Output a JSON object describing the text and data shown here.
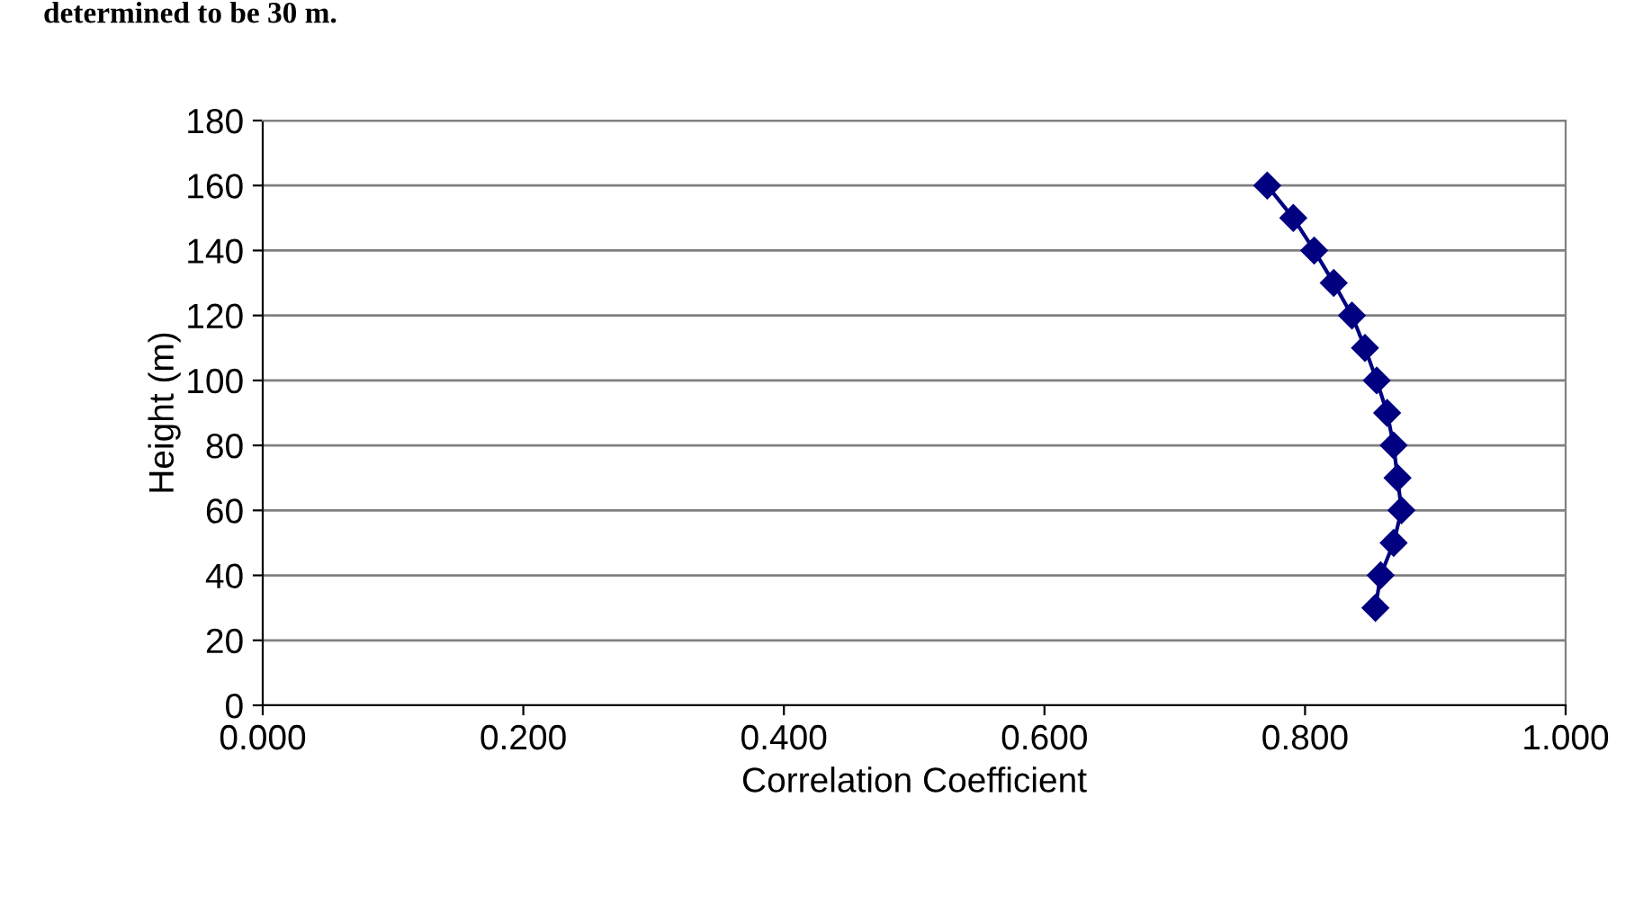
{
  "chart_data": {
    "type": "line",
    "xlabel": "Correlation Coefficient",
    "ylabel": "Height (m)",
    "annotations": [
      "determined to be 30 m."
    ],
    "x": [
      0.771,
      0.791,
      0.807,
      0.822,
      0.836,
      0.846,
      0.855,
      0.863,
      0.868,
      0.871,
      0.874,
      0.868,
      0.858,
      0.854
    ],
    "series": [
      {
        "color": "#000080",
        "values": [
          160,
          150,
          140,
          130,
          120,
          110,
          100,
          90,
          80,
          70,
          60,
          50,
          40,
          30
        ]
      }
    ],
    "xlim": [
      0,
      1
    ],
    "xticks": [
      {
        "value": 0,
        "label": "0.000"
      },
      {
        "value": 0.2,
        "label": "0.200"
      },
      {
        "value": 0.4,
        "label": "0.400"
      },
      {
        "value": 0.6,
        "label": "0.600"
      },
      {
        "value": 0.8,
        "label": "0.800"
      },
      {
        "value": 1,
        "label": "1.000"
      }
    ],
    "ylim": [
      0,
      180
    ],
    "yticks": [
      0,
      20,
      40,
      60,
      80,
      100,
      120,
      140,
      160,
      180
    ],
    "grid": "y",
    "marker": "diamond",
    "line_style": "solid",
    "legend": false
  }
}
